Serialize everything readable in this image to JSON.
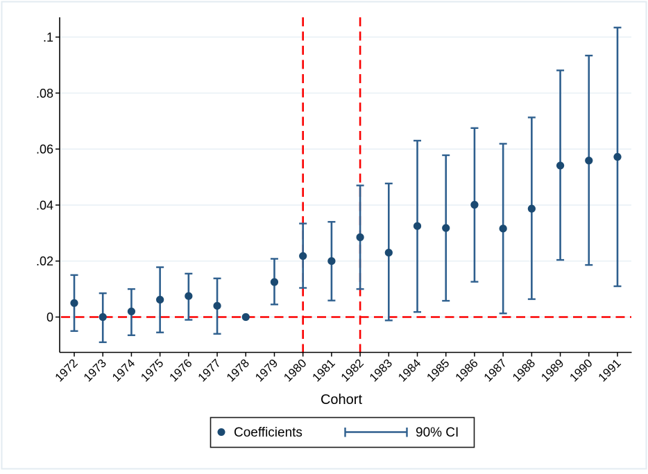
{
  "chart_data": {
    "type": "scatter",
    "subtype": "coefficient-plot-with-error-bars",
    "title": "",
    "xlabel": "Cohort",
    "ylabel": "",
    "x": [
      1972,
      1973,
      1974,
      1975,
      1976,
      1977,
      1978,
      1979,
      1980,
      1981,
      1982,
      1983,
      1984,
      1985,
      1986,
      1987,
      1988,
      1989,
      1990,
      1991
    ],
    "series": [
      {
        "name": "Coefficients",
        "values": [
          0.005,
          0.0,
          0.002,
          0.0062,
          0.0075,
          0.004,
          0.0,
          0.0125,
          0.0218,
          0.02,
          0.0285,
          0.023,
          0.0325,
          0.0318,
          0.0401,
          0.0316,
          0.0387,
          0.0541,
          0.0559,
          0.0572
        ],
        "ci_90_lower": [
          -0.005,
          -0.009,
          -0.0065,
          -0.0055,
          -0.001,
          -0.006,
          null,
          0.0045,
          0.0104,
          0.0059,
          0.01,
          -0.0012,
          0.0018,
          0.0058,
          0.0126,
          0.0013,
          0.0064,
          0.0204,
          0.0186,
          0.011
        ],
        "ci_90_upper": [
          0.015,
          0.0085,
          0.01,
          0.0178,
          0.0155,
          0.0138,
          null,
          0.0208,
          0.0334,
          0.034,
          0.047,
          0.0477,
          0.063,
          0.0578,
          0.0675,
          0.0619,
          0.0713,
          0.0881,
          0.0934,
          0.1034
        ]
      }
    ],
    "y_ticks": [
      0,
      0.02,
      0.04,
      0.06,
      0.08,
      0.1
    ],
    "y_tick_labels": [
      "0",
      ".02",
      ".04",
      ".06",
      ".08",
      ".1"
    ],
    "ylim": [
      -0.0126,
      0.1069
    ],
    "grid": true,
    "x_label_rotation_deg": -45,
    "reference_lines": {
      "horizontal_y": 0,
      "vertical_x": [
        1980,
        1982
      ],
      "style": "dashed"
    },
    "legend": {
      "position": "bottom-center",
      "border": true,
      "entries": [
        {
          "label": "Coefficients",
          "marker": "filled-circle"
        },
        {
          "label": "90% CI",
          "marker": "error-bar"
        }
      ]
    },
    "colors": {
      "marker": "#1b4a72",
      "ci_line": "#2e5f8e",
      "reference": "#fa0000",
      "gridline": "#eaf1f6",
      "axis": "#000000",
      "frame": "#e3ebf1",
      "legend_border": "#1a1a1a",
      "background": "#ffffff"
    }
  }
}
